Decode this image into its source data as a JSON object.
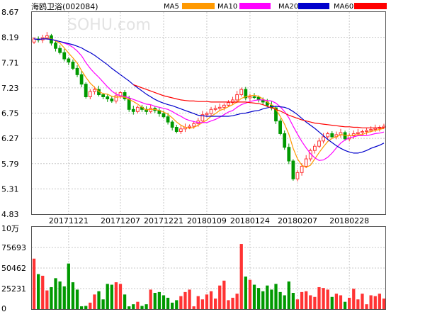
{
  "chart_data": {
    "type": "candlestick",
    "title": "海鸥卫浴(002084)",
    "watermark": "SOHU.com",
    "legend": [
      {
        "name": "MA5",
        "color": "#ff9900"
      },
      {
        "name": "MA10",
        "color": "#ff00ff"
      },
      {
        "name": "MA20",
        "color": "#0000cc"
      },
      {
        "name": "MA60",
        "color": "#ff0000"
      }
    ],
    "colors": {
      "up": "#ff3333",
      "down": "#009900",
      "grid": "#c8c8c8",
      "frame": "#555555"
    },
    "price_axis": {
      "ticks": [
        "8.67",
        "8.19",
        "7.71",
        "7.23",
        "6.75",
        "6.27",
        "5.79",
        "5.31",
        "4.83"
      ],
      "ylim": [
        4.83,
        8.67
      ]
    },
    "date_labels": [
      "20171121",
      "20171207",
      "20171221",
      "20180109",
      "20180124",
      "20180207",
      "20180228"
    ],
    "date_label_index": [
      8,
      20,
      30,
      40,
      50,
      61,
      73
    ],
    "volume_axis": {
      "unit": "10万",
      "ticks": [
        "75693",
        "50462",
        "25231",
        "0"
      ],
      "ylim": [
        0,
        100924
      ]
    },
    "closes": [
      8.16,
      8.14,
      8.18,
      8.22,
      8.08,
      7.98,
      7.9,
      7.78,
      7.72,
      7.6,
      7.48,
      7.3,
      7.06,
      7.16,
      7.2,
      7.1,
      7.06,
      7.02,
      6.98,
      7.08,
      7.14,
      7.02,
      6.82,
      6.78,
      6.86,
      6.82,
      6.78,
      6.84,
      6.8,
      6.74,
      6.68,
      6.58,
      6.48,
      6.4,
      6.45,
      6.48,
      6.5,
      6.55,
      6.6,
      6.72,
      6.74,
      6.82,
      6.84,
      6.86,
      6.9,
      6.95,
      7.0,
      7.1,
      7.2,
      7.04,
      7.06,
      7.05,
      7.0,
      6.96,
      6.9,
      6.85,
      6.6,
      6.36,
      6.1,
      5.84,
      5.5,
      5.62,
      5.74,
      5.88,
      6.04,
      6.12,
      6.22,
      6.3,
      6.36,
      6.3,
      6.34,
      6.38,
      6.26,
      6.32,
      6.36,
      6.38,
      6.4,
      6.42,
      6.44,
      6.46,
      6.48,
      6.5
    ],
    "series": [
      {
        "name": "MA5",
        "values": [
          8.16,
          8.15,
          8.16,
          8.17,
          8.16,
          8.12,
          8.08,
          7.99,
          7.89,
          7.8,
          7.7,
          7.56,
          7.43,
          7.32,
          7.24,
          7.16,
          7.12,
          7.11,
          7.07,
          7.05,
          7.06,
          7.05,
          7.01,
          6.97,
          6.92,
          6.86,
          6.81,
          6.82,
          6.82,
          6.8,
          6.77,
          6.73,
          6.66,
          6.58,
          6.52,
          6.48,
          6.46,
          6.48,
          6.52,
          6.57,
          6.62,
          6.69,
          6.74,
          6.8,
          6.83,
          6.87,
          6.91,
          6.96,
          7.03,
          7.06,
          7.08,
          7.09,
          7.07,
          7.02,
          6.96,
          6.91,
          6.82,
          6.69,
          6.54,
          6.35,
          6.08,
          5.88,
          5.76,
          5.72,
          5.76,
          5.88,
          6.0,
          6.11,
          6.21,
          6.27,
          6.3,
          6.34,
          6.33,
          6.32,
          6.33,
          6.34,
          6.34,
          6.38,
          6.4,
          6.42,
          6.44,
          6.46
        ]
      },
      {
        "name": "MA10",
        "values": [
          8.16,
          8.15,
          8.16,
          8.16,
          8.15,
          8.13,
          8.11,
          8.08,
          8.05,
          8.0,
          7.93,
          7.84,
          7.71,
          7.6,
          7.51,
          7.43,
          7.34,
          7.25,
          7.17,
          7.11,
          7.08,
          7.07,
          7.04,
          7.01,
          6.98,
          6.95,
          6.92,
          6.91,
          6.88,
          6.86,
          6.84,
          6.82,
          6.78,
          6.73,
          6.69,
          6.64,
          6.61,
          6.59,
          6.57,
          6.57,
          6.57,
          6.6,
          6.63,
          6.67,
          6.72,
          6.77,
          6.8,
          6.86,
          6.91,
          6.94,
          6.97,
          6.99,
          7.0,
          7.0,
          6.99,
          6.98,
          6.94,
          6.87,
          6.78,
          6.66,
          6.5,
          6.35,
          6.21,
          6.09,
          5.98,
          5.9,
          5.85,
          5.86,
          5.91,
          5.99,
          6.09,
          6.18,
          6.24,
          6.28,
          6.3,
          6.32,
          6.32,
          6.32,
          6.34,
          6.36,
          6.37,
          6.39
        ]
      },
      {
        "name": "MA20",
        "values": [
          8.16,
          8.15,
          8.16,
          8.16,
          8.15,
          8.13,
          8.11,
          8.09,
          8.07,
          8.05,
          8.02,
          7.99,
          7.94,
          7.9,
          7.85,
          7.79,
          7.73,
          7.67,
          7.6,
          7.54,
          7.48,
          7.42,
          7.36,
          7.29,
          7.23,
          7.17,
          7.11,
          7.06,
          7.01,
          6.97,
          6.94,
          6.91,
          6.89,
          6.86,
          6.83,
          6.8,
          6.77,
          6.74,
          6.71,
          6.7,
          6.69,
          6.69,
          6.69,
          6.69,
          6.69,
          6.69,
          6.7,
          6.72,
          6.74,
          6.75,
          6.77,
          6.79,
          6.8,
          6.83,
          6.85,
          6.87,
          6.88,
          6.87,
          6.86,
          6.83,
          6.78,
          6.72,
          6.65,
          6.58,
          6.52,
          6.46,
          6.39,
          6.32,
          6.25,
          6.19,
          6.13,
          6.08,
          6.04,
          6.01,
          5.99,
          5.99,
          6.01,
          6.04,
          6.08,
          6.11,
          6.14,
          6.18
        ]
      },
      {
        "name": "MA60",
        "values": [
          null,
          null,
          null,
          null,
          null,
          null,
          null,
          null,
          null,
          null,
          null,
          null,
          null,
          null,
          null,
          null,
          null,
          null,
          null,
          null,
          null,
          null,
          null,
          7.29,
          7.26,
          7.23,
          7.2,
          7.17,
          7.14,
          7.11,
          7.08,
          7.06,
          7.04,
          7.02,
          7.0,
          6.99,
          6.98,
          6.98,
          6.97,
          6.97,
          6.97,
          6.96,
          6.96,
          6.96,
          6.96,
          6.96,
          6.96,
          6.96,
          6.96,
          6.96,
          6.95,
          6.94,
          6.93,
          6.91,
          6.88,
          6.85,
          6.82,
          6.79,
          6.75,
          6.71,
          6.68,
          6.65,
          6.62,
          6.6,
          6.58,
          6.56,
          6.55,
          6.54,
          6.53,
          6.52,
          6.51,
          6.5,
          6.49,
          6.49,
          6.48,
          6.48,
          6.47,
          6.47,
          6.47,
          6.47,
          6.47,
          6.47
        ]
      }
    ],
    "volumes": [
      62000,
      43000,
      41000,
      23000,
      27000,
      38000,
      34000,
      28000,
      56000,
      33000,
      24000,
      3500,
      4000,
      8000,
      18000,
      22000,
      12000,
      31000,
      30000,
      33000,
      31000,
      18000,
      3500,
      6000,
      9000,
      4000,
      6000,
      24000,
      20000,
      21000,
      17000,
      14000,
      8000,
      11000,
      16000,
      21000,
      24000,
      3500,
      16000,
      12000,
      18000,
      22000,
      13000,
      29000,
      35000,
      11000,
      14000,
      19000,
      80000,
      40000,
      36000,
      30000,
      26000,
      22000,
      29000,
      24000,
      31000,
      21000,
      17000,
      34000,
      20000,
      12000,
      21000,
      22000,
      17000,
      15000,
      27000,
      26000,
      24000,
      15000,
      19000,
      17000,
      9000,
      14000,
      25000,
      12000,
      19000,
      6000,
      17000,
      16000,
      19000,
      13000
    ]
  }
}
